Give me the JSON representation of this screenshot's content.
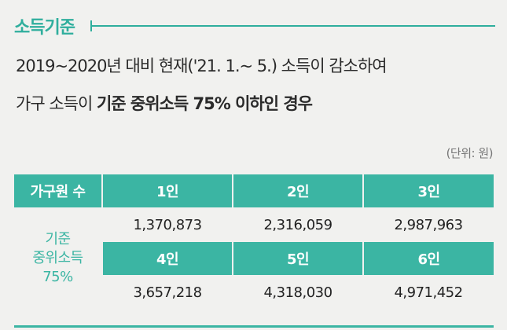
{
  "section": {
    "title": "소득기준"
  },
  "description": {
    "line1": "2019~2020년 대비 현재('21. 1.~ 5.) 소득이 감소하여",
    "line2_prefix": "가구 소득이 ",
    "line2_bold": "기준 중위소득 75% 이하인 경우"
  },
  "unit_note": "(단위: 원)",
  "table": {
    "row_header": "가구원 수",
    "row_label_lines": [
      "기준",
      "중위소득",
      "75%"
    ],
    "group1": {
      "headers": [
        "1인",
        "2인",
        "3인"
      ],
      "values": [
        "1,370,873",
        "2,316,059",
        "2,987,963"
      ]
    },
    "group2": {
      "headers": [
        "4인",
        "5인",
        "6인"
      ],
      "values": [
        "3,657,218",
        "4,318,030",
        "4,971,452"
      ]
    }
  },
  "colors": {
    "accent": "#3bb5a3",
    "title": "#2fae9d",
    "background": "#f1f1ef"
  }
}
